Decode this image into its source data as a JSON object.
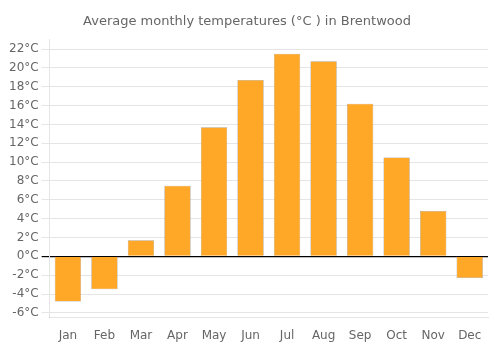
{
  "chart_data": {
    "type": "bar",
    "title": "Average monthly temperatures (°C ) in Brentwood",
    "categories": [
      "Jan",
      "Feb",
      "Mar",
      "Apr",
      "May",
      "Jun",
      "Jul",
      "Aug",
      "Sep",
      "Oct",
      "Nov",
      "Dec"
    ],
    "values": [
      -4.8,
      -3.5,
      1.7,
      7.5,
      13.7,
      18.7,
      21.5,
      20.7,
      16.2,
      10.5,
      4.8,
      -2.3
    ],
    "color": "#FFA726",
    "ylim": [
      -6.5,
      23
    ],
    "yticks": [
      {
        "value": -6,
        "label": "-6°C"
      },
      {
        "value": -4,
        "label": "-4°C"
      },
      {
        "value": -2,
        "label": "-2°C"
      },
      {
        "value": 0,
        "label": "0°C"
      },
      {
        "value": 2,
        "label": "2°C"
      },
      {
        "value": 4,
        "label": "4°C"
      },
      {
        "value": 6,
        "label": "6°C"
      },
      {
        "value": 8,
        "label": "8°C"
      },
      {
        "value": 10,
        "label": "10°C"
      },
      {
        "value": 12,
        "label": "12°C"
      },
      {
        "value": 14,
        "label": "14°C"
      },
      {
        "value": 16,
        "label": "16°C"
      },
      {
        "value": 18,
        "label": "18°C"
      },
      {
        "value": 20,
        "label": "20°C"
      },
      {
        "value": 22,
        "label": "22°C"
      }
    ],
    "grid": true
  }
}
